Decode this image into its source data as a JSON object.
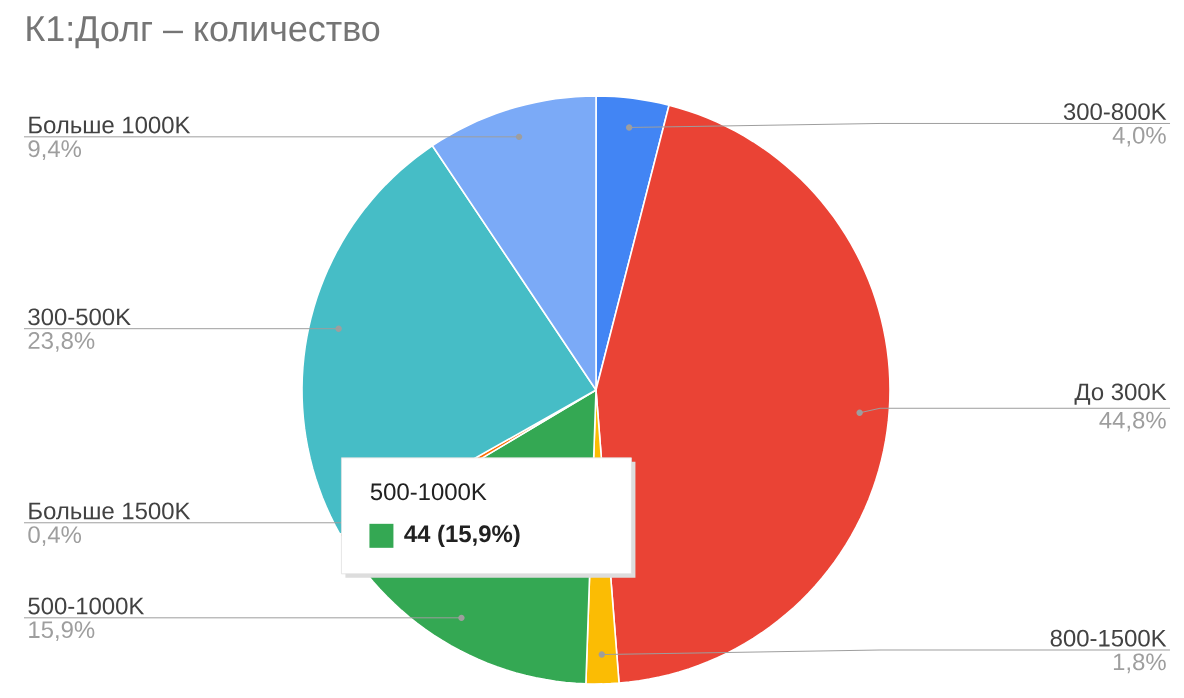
{
  "chart_data": {
    "type": "pie",
    "title": "К1:Долг – количество",
    "categories": [
      "300-800K",
      "До 300K",
      "800-1500K",
      "500-1000K",
      "Больше 1500K",
      "300-500K",
      "Больше 1000K"
    ],
    "values": [
      4.0,
      44.8,
      1.8,
      15.9,
      0.4,
      23.8,
      9.4
    ],
    "value_labels": [
      "4,0%",
      "44,8%",
      "1,8%",
      "15,9%",
      "0,4%",
      "23,8%",
      "9,4%"
    ],
    "colors": [
      "#4285f4",
      "#ea4335",
      "#fbbc04",
      "#34a853",
      "#ff6d01",
      "#46bdc6",
      "#7baaf7"
    ],
    "annotations": [
      {
        "text": "44 (15,9%)",
        "x": "500-1000K"
      }
    ]
  }
}
